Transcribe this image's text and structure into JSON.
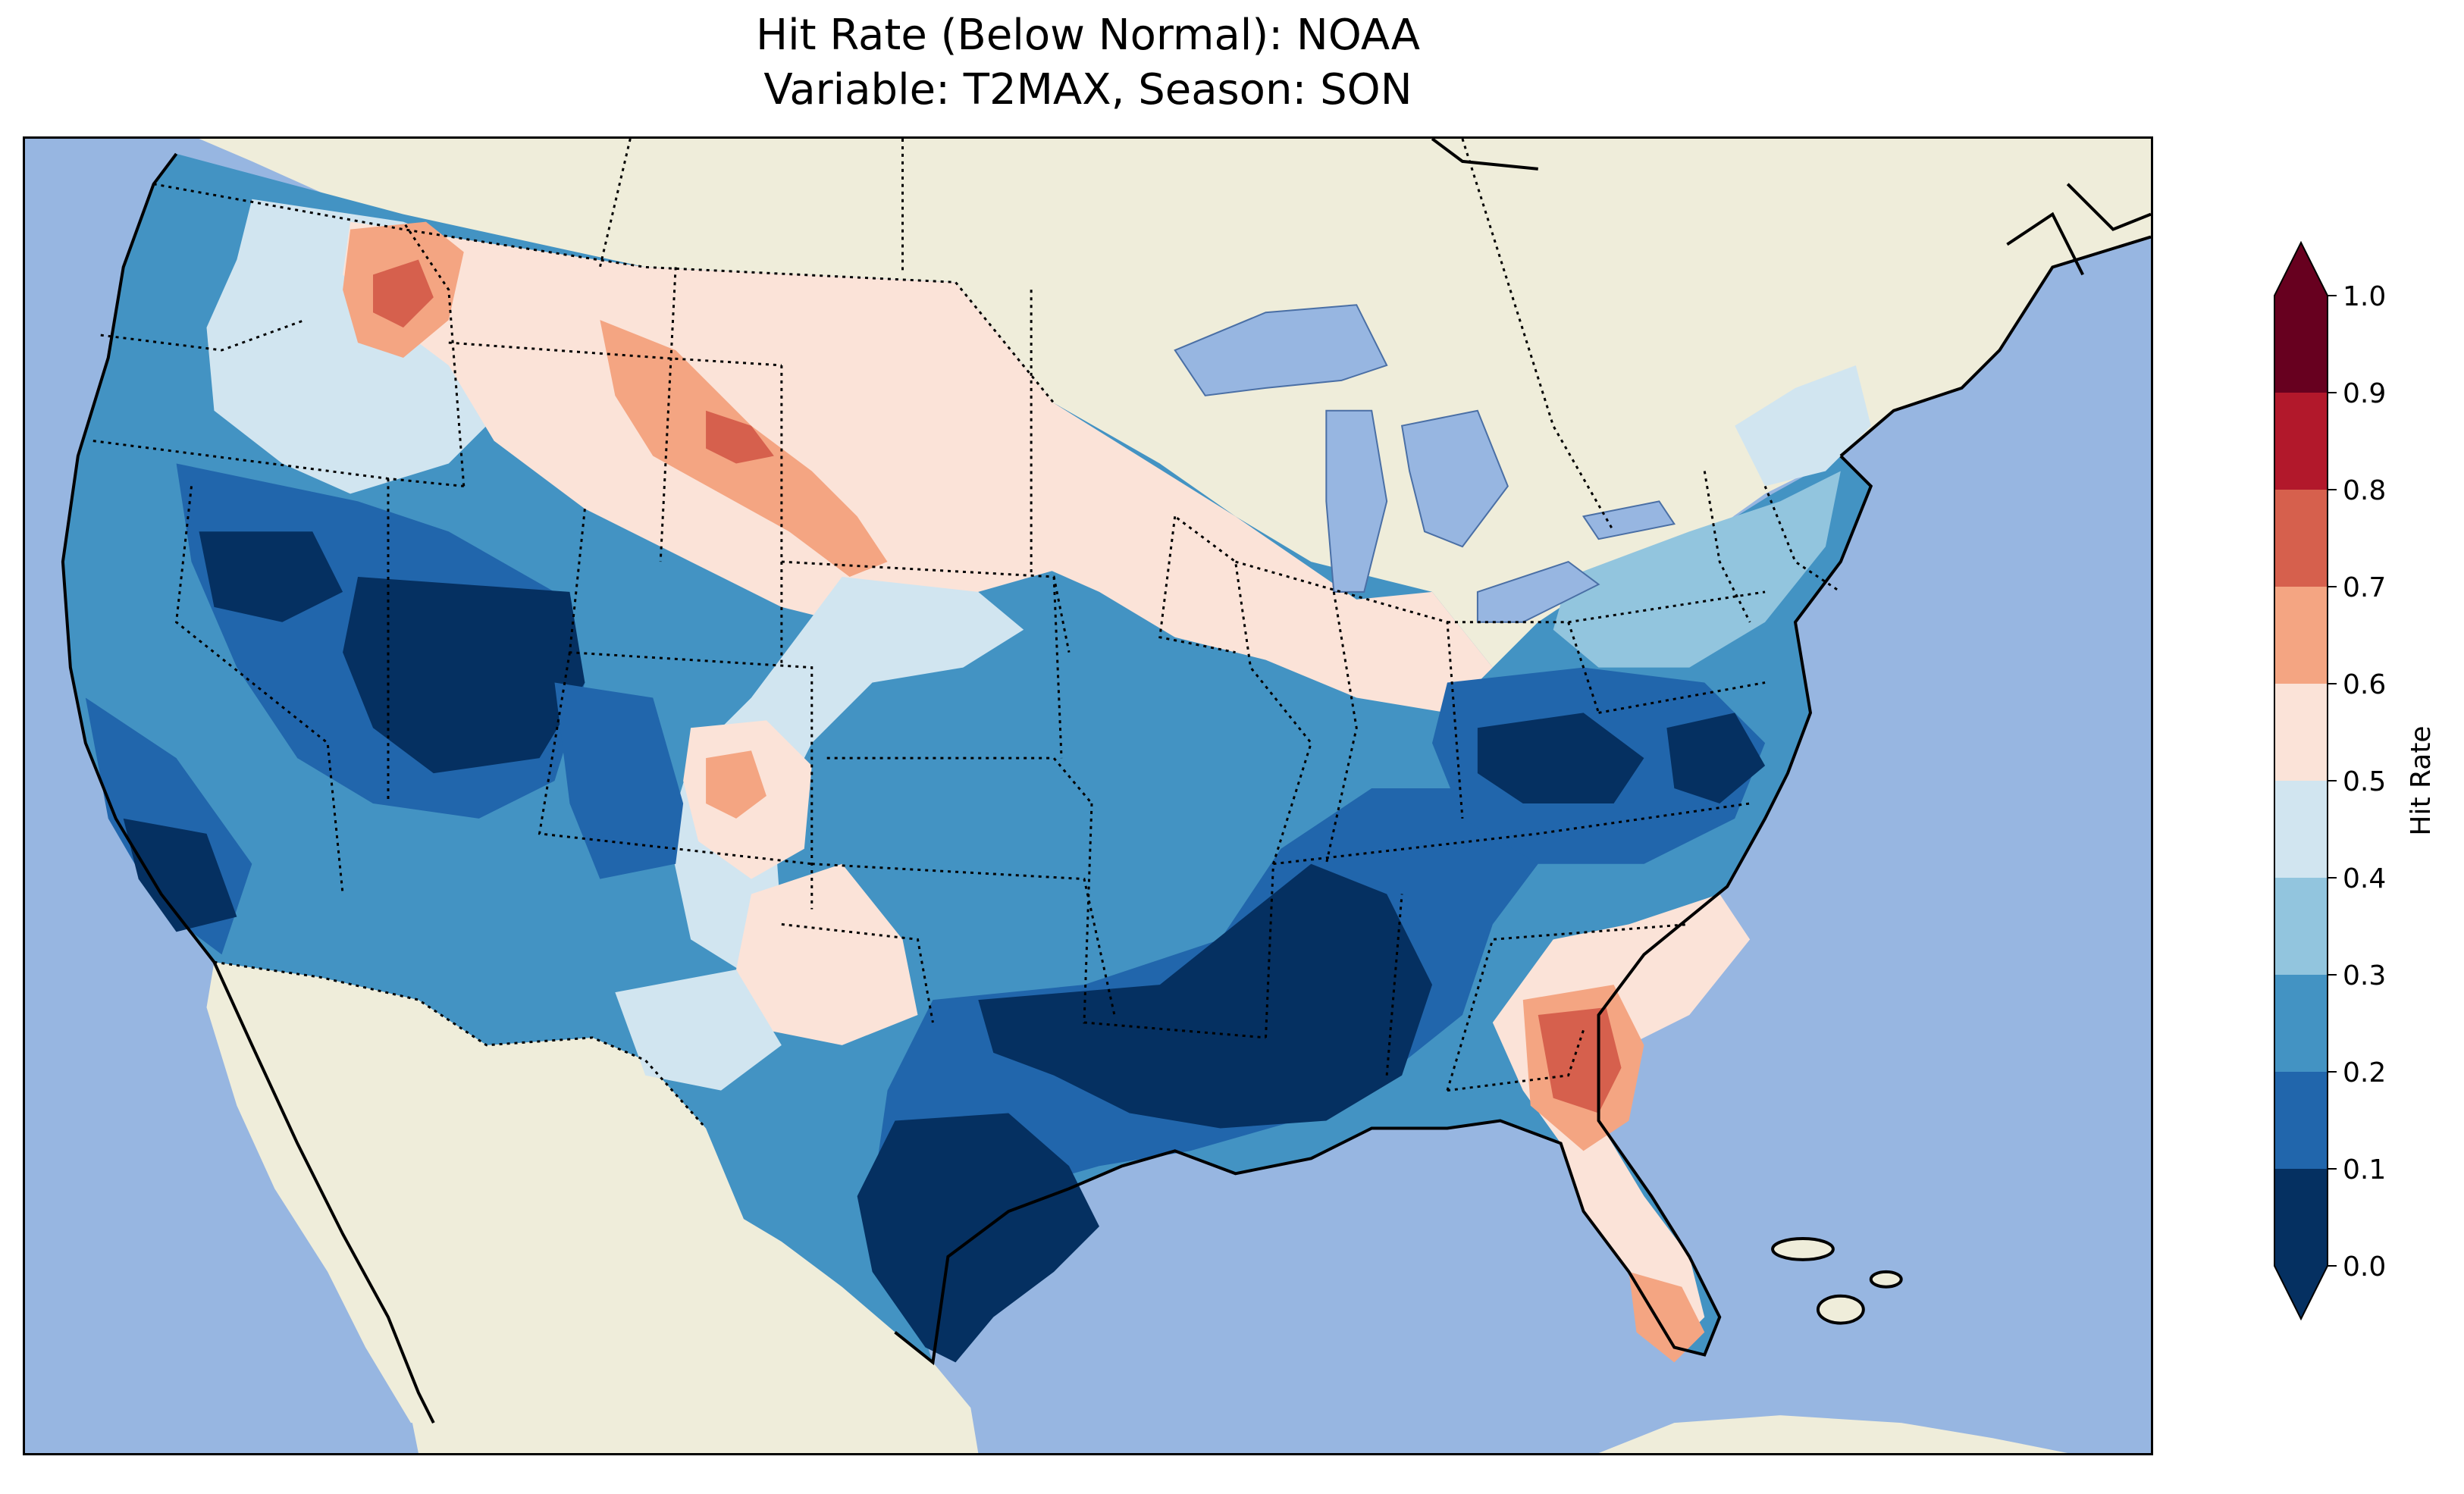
{
  "title": {
    "line1": "Hit Rate (Below Normal): NOAA",
    "line2": "Variable: T2MAX, Season: SON"
  },
  "colors": {
    "ocean": "#97b6e1",
    "land": "#efedda",
    "state_border": "#000000",
    "coastline": "#000000"
  },
  "colorbar": {
    "label": "Hit Rate",
    "ticks": [
      "0.0",
      "0.1",
      "0.2",
      "0.3",
      "0.4",
      "0.5",
      "0.6",
      "0.7",
      "0.8",
      "0.9",
      "1.0"
    ],
    "bins": [
      {
        "range": [
          0.0,
          0.1
        ],
        "color": "#053061"
      },
      {
        "range": [
          0.1,
          0.2
        ],
        "color": "#2166ac"
      },
      {
        "range": [
          0.2,
          0.3
        ],
        "color": "#4393c3"
      },
      {
        "range": [
          0.3,
          0.4
        ],
        "color": "#92c5de"
      },
      {
        "range": [
          0.4,
          0.5
        ],
        "color": "#d1e5f0"
      },
      {
        "range": [
          0.5,
          0.6
        ],
        "color": "#fbe3d8"
      },
      {
        "range": [
          0.6,
          0.7
        ],
        "color": "#f4a582"
      },
      {
        "range": [
          0.7,
          0.8
        ],
        "color": "#d6604d"
      },
      {
        "range": [
          0.8,
          0.9
        ],
        "color": "#b2182b"
      },
      {
        "range": [
          0.9,
          1.0
        ],
        "color": "#67001f"
      }
    ],
    "extend": "both",
    "under_color": "#053061",
    "over_color": "#67001f"
  },
  "map_data": {
    "region": "Contiguous United States",
    "variable": "T2MAX",
    "season": "SON",
    "field": "Hit rate of below-normal category forecasts",
    "regions": [
      {
        "name": "Washington/Oregon coast",
        "value": 0.25
      },
      {
        "name": "Idaho/Montana north",
        "value": 0.65
      },
      {
        "name": "Montana/Wyoming/Dakotas",
        "value": 0.55
      },
      {
        "name": "Southern Wyoming ridge",
        "value": 0.65
      },
      {
        "name": "Nevada/Utah",
        "value": 0.05
      },
      {
        "name": "Colorado",
        "value": 0.35
      },
      {
        "name": "Central Colorado spot",
        "value": 0.65
      },
      {
        "name": "Great Plains",
        "value": 0.25
      },
      {
        "name": "Upper Midwest",
        "value": 0.55
      },
      {
        "name": "Arizona/New Mexico",
        "value": 0.25
      },
      {
        "name": "Texas/Gulf Coast",
        "value": 0.05
      },
      {
        "name": "Lower Mississippi Valley",
        "value": 0.05
      },
      {
        "name": "Appalachians/Virginia",
        "value": 0.15
      },
      {
        "name": "Georgia/South Carolina coast",
        "value": 0.75
      },
      {
        "name": "Florida peninsula",
        "value": 0.55
      },
      {
        "name": "Northeast",
        "value": 0.35
      }
    ]
  }
}
